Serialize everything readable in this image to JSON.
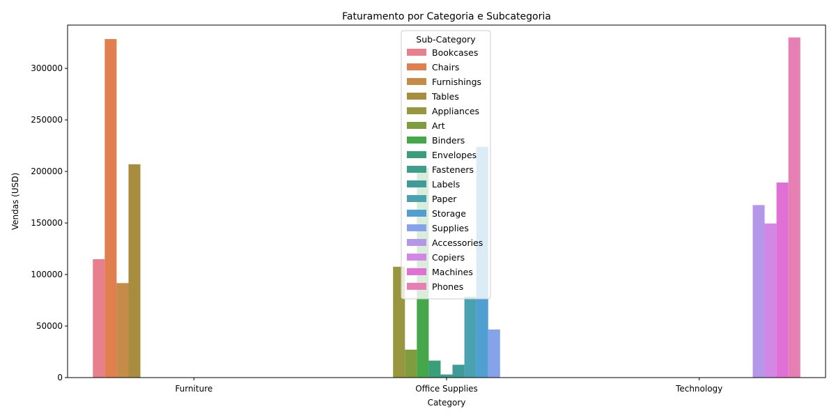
{
  "chart_data": {
    "type": "bar",
    "title": "Faturamento por Categoria e Subcategoria",
    "xlabel": "Category",
    "ylabel": "Vendas (USD)",
    "ylim": [
      0,
      342000
    ],
    "yticks": [
      0,
      50000,
      100000,
      150000,
      200000,
      250000,
      300000
    ],
    "yticks_labels": [
      "0",
      "50000",
      "100000",
      "150000",
      "200000",
      "250000",
      "300000"
    ],
    "categories": [
      "Furniture",
      "Office Supplies",
      "Technology"
    ],
    "legend_title": "Sub-Category",
    "legend_placement": "top-center",
    "grid": false,
    "series": [
      {
        "name": "Bookcases",
        "color": "#e87f8c",
        "values": [
          114880,
          null,
          null
        ]
      },
      {
        "name": "Chairs",
        "color": "#e17f50",
        "values": [
          328449,
          null,
          null
        ]
      },
      {
        "name": "Furnishings",
        "color": "#c48b49",
        "values": [
          91705,
          null,
          null
        ]
      },
      {
        "name": "Tables",
        "color": "#a88d3f",
        "values": [
          206966,
          null,
          null
        ]
      },
      {
        "name": "Appliances",
        "color": "#999640",
        "values": [
          null,
          107532,
          null
        ]
      },
      {
        "name": "Art",
        "color": "#7f9c3f",
        "values": [
          null,
          27119,
          null
        ]
      },
      {
        "name": "Binders",
        "color": "#46a74a",
        "values": [
          null,
          203413,
          null
        ]
      },
      {
        "name": "Envelopes",
        "color": "#3a9e78",
        "values": [
          null,
          16476,
          null
        ]
      },
      {
        "name": "Fasteners",
        "color": "#409d8c",
        "values": [
          null,
          3024,
          null
        ]
      },
      {
        "name": "Labels",
        "color": "#3f9b9a",
        "values": [
          null,
          12486,
          null
        ]
      },
      {
        "name": "Paper",
        "color": "#4aa1b0",
        "values": [
          null,
          78479,
          null
        ]
      },
      {
        "name": "Storage",
        "color": "#4f9fd2",
        "values": [
          null,
          223844,
          null
        ]
      },
      {
        "name": "Supplies",
        "color": "#86a2e8",
        "values": [
          null,
          46674,
          null
        ]
      },
      {
        "name": "Accessories",
        "color": "#b497e8",
        "values": [
          null,
          null,
          167380
        ]
      },
      {
        "name": "Copiers",
        "color": "#d286e6",
        "values": [
          null,
          null,
          149528
        ]
      },
      {
        "name": "Machines",
        "color": "#e070d6",
        "values": [
          null,
          null,
          189239
        ]
      },
      {
        "name": "Phones",
        "color": "#e57fb4",
        "values": [
          null,
          null,
          330007
        ]
      }
    ]
  }
}
